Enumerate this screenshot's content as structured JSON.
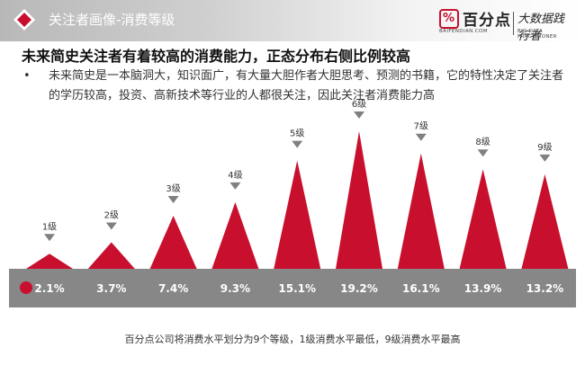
{
  "header": {
    "title": "关注者画像-消费等级"
  },
  "brand": {
    "name": "百分点",
    "url": "BAIFENDIAN.COM",
    "slogan": "大数据践行者",
    "slogan_en": "BIG DATA PRACTITIONER"
  },
  "main_title": "未来简史关注者有着较高的消费能力，正态分布右侧比例较高",
  "bullet": {
    "symbol": "•",
    "text": "未来简史是一本脑洞大，知识面广，有大量大胆作者大胆思考、预测的书籍，它的特性决定了关注者的学历较高，投资、高新技术等行业的人都很关注，因此关注者消费能力高"
  },
  "chart_data": {
    "type": "bar",
    "categories": [
      "1级",
      "2级",
      "3级",
      "4级",
      "5级",
      "6级",
      "7级",
      "8级",
      "9级"
    ],
    "values": [
      2.1,
      3.7,
      7.4,
      9.3,
      15.1,
      19.2,
      16.1,
      13.9,
      13.2
    ],
    "value_labels": [
      "2.1%",
      "3.7%",
      "7.4%",
      "9.3%",
      "15.1%",
      "19.2%",
      "16.1%",
      "13.9%",
      "13.2%"
    ],
    "title": "",
    "xlabel": "",
    "ylabel": "",
    "grid": false,
    "legend": "none",
    "colors": {
      "bar": "#c8102e",
      "baseline_band": "#878787",
      "marker": "#808080",
      "dot": "#c8102e"
    }
  },
  "footnote": "百分点公司将消费水平划分为9个等级，1级消费水平最低，9级消费水平最高"
}
